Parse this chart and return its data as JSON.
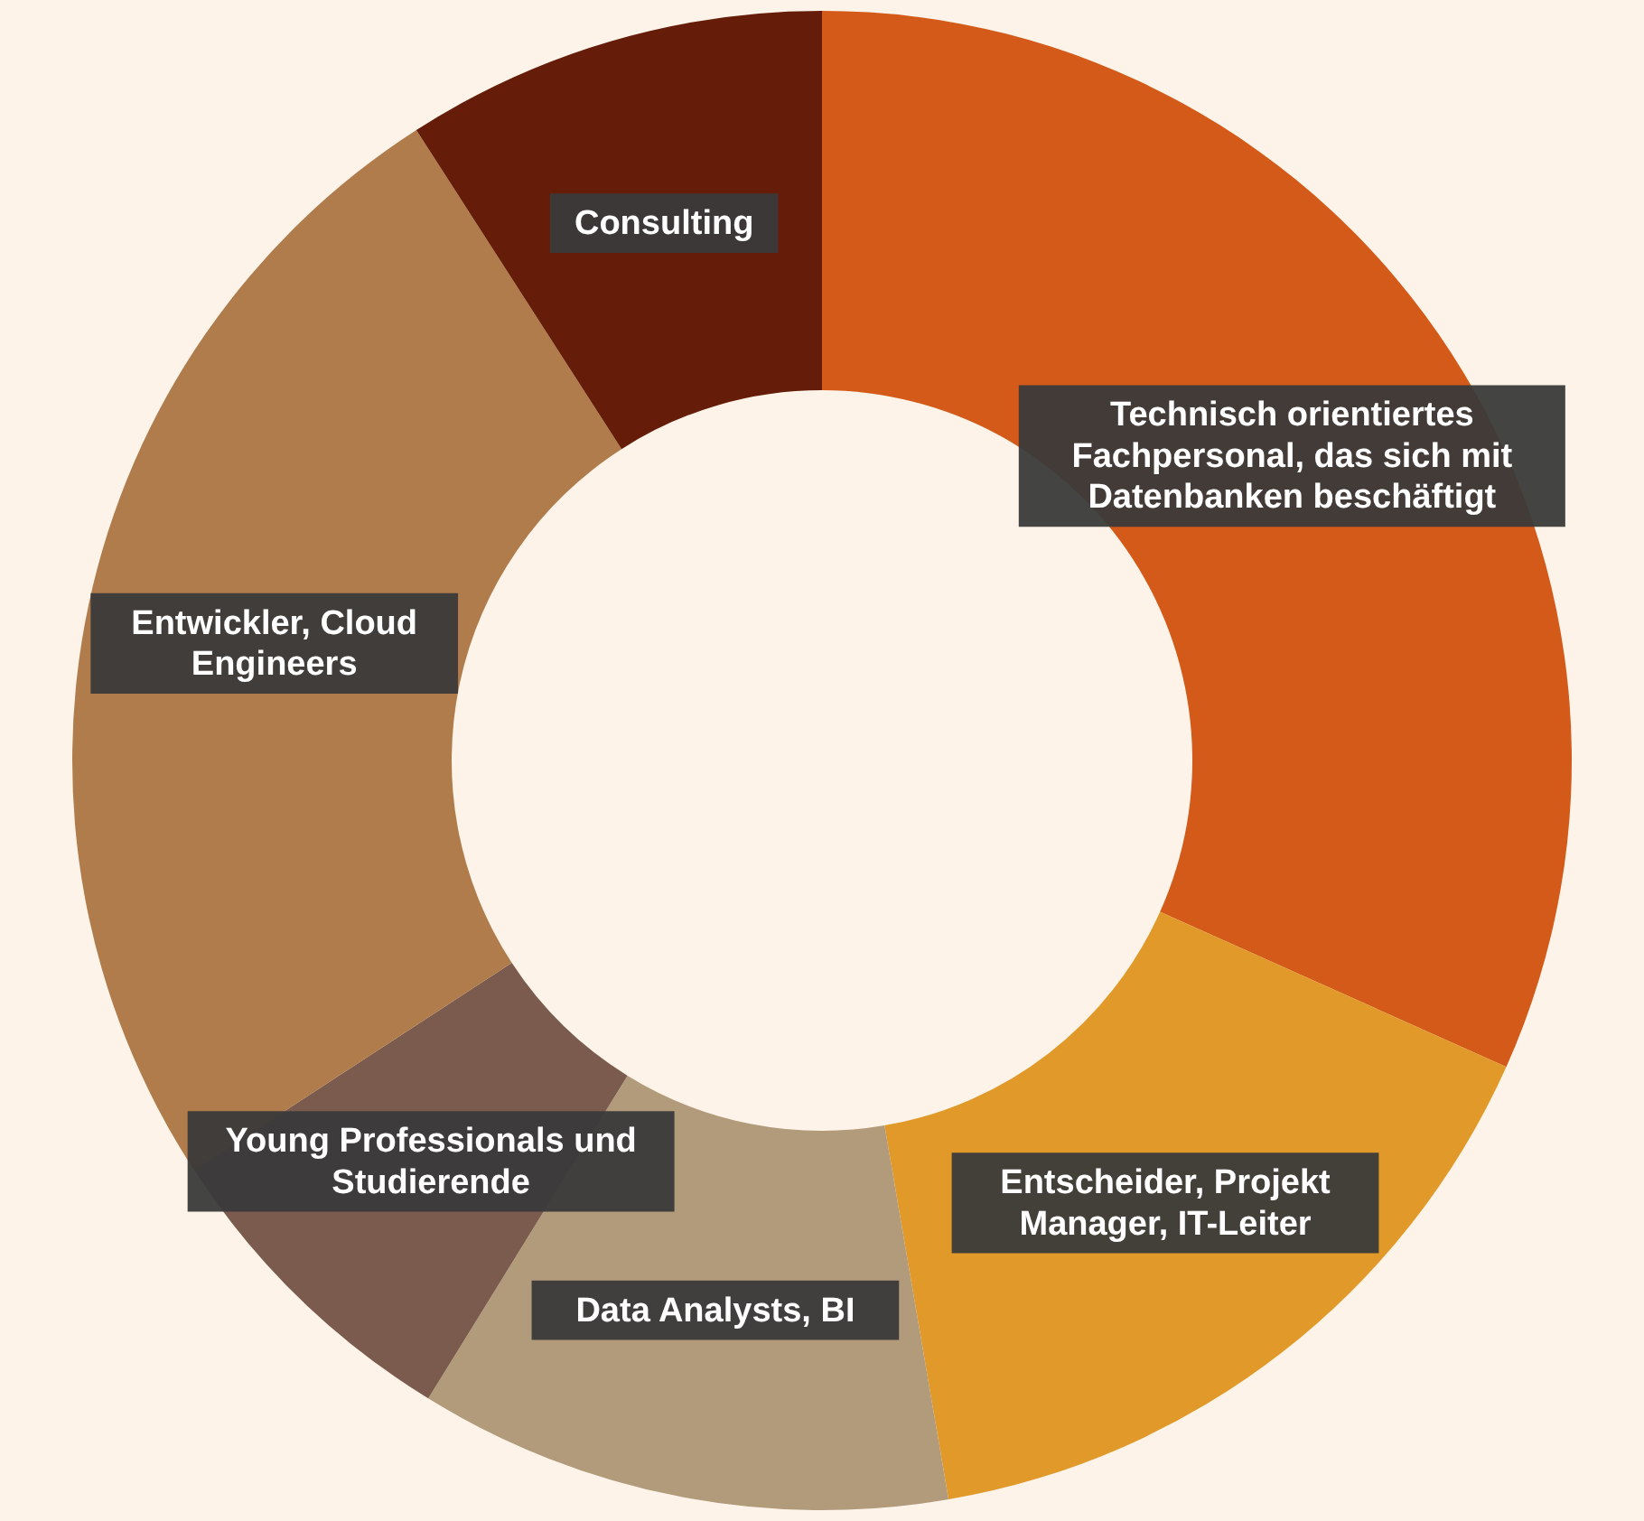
{
  "chart_data": {
    "type": "donut",
    "categories": [
      "Technisch orientiertes Fachpersonal, das sich mit Datenbanken beschäftigt",
      "Entscheider, Projekt Manager, IT-Leiter",
      "Data Analysts, BI",
      "Young Professionals und Studierende",
      "Entwickler, Cloud Engineers",
      "Consulting"
    ],
    "values": [
      31.7,
      15.6,
      11.5,
      7.0,
      25.1,
      9.1
    ],
    "colors": [
      "#d35a19",
      "#e19a2a",
      "#b19b7b",
      "#7b5b4d",
      "#b07c4b",
      "#651d0a"
    ],
    "legend": false
  }
}
